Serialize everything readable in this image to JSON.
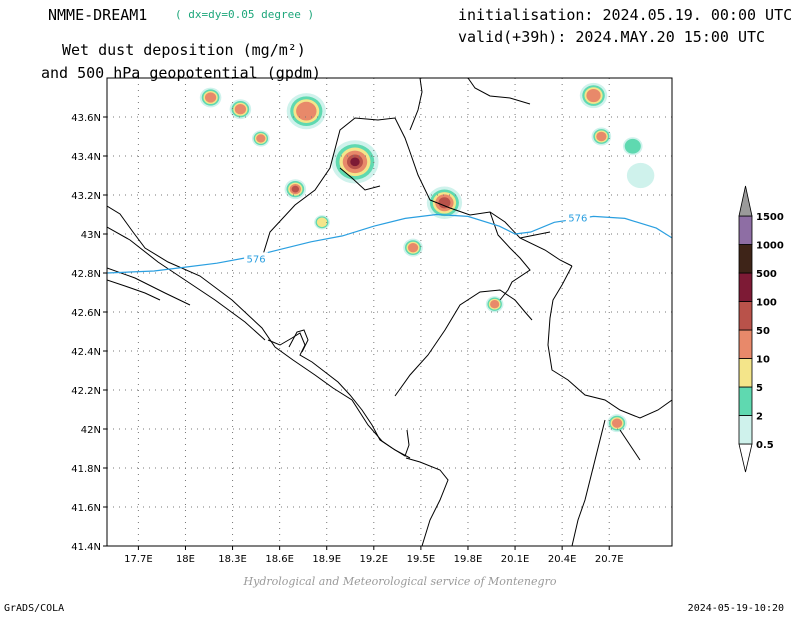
{
  "header": {
    "model": "NMME-DREAM1",
    "resolution": "( dx=dy=0.05 degree )",
    "init": "initialisation: 2024.05.19. 00:00 UTC",
    "valid": "valid(+39h): 2024.MAY.20 15:00 UTC",
    "title_line1": "Wet dust deposition (mg/m²)",
    "title_line2": "and 500 hPa geopotential (gpdm)"
  },
  "footer": {
    "credit": "Hydrological and Meteorological service of Montenegro",
    "software": "GrADS/COLA",
    "created": "2024-05-19-10:20"
  },
  "map": {
    "lon_range": [
      17.5,
      21.1
    ],
    "lat_range": [
      41.4,
      43.8
    ],
    "lon_ticks": [
      {
        "value": 17.7,
        "label": "17.7E"
      },
      {
        "value": 18.0,
        "label": "18E"
      },
      {
        "value": 18.3,
        "label": "18.3E"
      },
      {
        "value": 18.6,
        "label": "18.6E"
      },
      {
        "value": 18.9,
        "label": "18.9E"
      },
      {
        "value": 19.2,
        "label": "19.2E"
      },
      {
        "value": 19.5,
        "label": "19.5E"
      },
      {
        "value": 19.8,
        "label": "19.8E"
      },
      {
        "value": 20.1,
        "label": "20.1E"
      },
      {
        "value": 20.4,
        "label": "20.4E"
      },
      {
        "value": 20.7,
        "label": "20.7E"
      }
    ],
    "lat_ticks": [
      {
        "value": 41.4,
        "label": "41.4N"
      },
      {
        "value": 41.6,
        "label": "41.6N"
      },
      {
        "value": 41.8,
        "label": "41.8N"
      },
      {
        "value": 42.0,
        "label": "42N"
      },
      {
        "value": 42.2,
        "label": "42.2N"
      },
      {
        "value": 42.4,
        "label": "42.4N"
      },
      {
        "value": 42.6,
        "label": "42.6N"
      },
      {
        "value": 42.8,
        "label": "42.8N"
      },
      {
        "value": 43.0,
        "label": "43N"
      },
      {
        "value": 43.2,
        "label": "43.2N"
      },
      {
        "value": 43.4,
        "label": "43.4N"
      },
      {
        "value": 43.6,
        "label": "43.6N"
      }
    ],
    "contour_label": "576",
    "contour_576": [
      [
        17.5,
        42.8
      ],
      [
        17.8,
        42.81
      ],
      [
        18.0,
        42.83
      ],
      [
        18.2,
        42.85
      ],
      [
        18.4,
        42.88
      ],
      [
        18.6,
        42.92
      ],
      [
        18.8,
        42.96
      ],
      [
        19.0,
        42.99
      ],
      [
        19.2,
        43.04
      ],
      [
        19.4,
        43.08
      ],
      [
        19.6,
        43.1
      ],
      [
        19.8,
        43.09
      ],
      [
        20.0,
        43.04
      ],
      [
        20.1,
        43.0
      ],
      [
        20.2,
        43.01
      ],
      [
        20.35,
        43.06
      ],
      [
        20.6,
        43.09
      ],
      [
        20.8,
        43.08
      ],
      [
        21.0,
        43.03
      ],
      [
        21.1,
        42.98
      ]
    ],
    "contour_label_positions": [
      [
        18.45,
        42.87
      ],
      [
        20.5,
        43.08
      ]
    ],
    "dust_blobs": [
      {
        "lon": 18.16,
        "lat": 43.7,
        "r": 0.055,
        "max_level": 3
      },
      {
        "lon": 18.35,
        "lat": 43.64,
        "r": 0.055,
        "max_level": 3
      },
      {
        "lon": 18.48,
        "lat": 43.49,
        "r": 0.045,
        "max_level": 3
      },
      {
        "lon": 18.77,
        "lat": 43.63,
        "r": 0.1,
        "max_level": 3
      },
      {
        "lon": 18.7,
        "lat": 43.23,
        "r": 0.055,
        "max_level": 4
      },
      {
        "lon": 18.87,
        "lat": 43.06,
        "r": 0.04,
        "max_level": 2
      },
      {
        "lon": 19.08,
        "lat": 43.37,
        "r": 0.12,
        "max_level": 5
      },
      {
        "lon": 19.65,
        "lat": 43.16,
        "r": 0.09,
        "max_level": 4
      },
      {
        "lon": 19.45,
        "lat": 42.93,
        "r": 0.05,
        "max_level": 3
      },
      {
        "lon": 19.97,
        "lat": 42.64,
        "r": 0.045,
        "max_level": 3
      },
      {
        "lon": 20.6,
        "lat": 43.71,
        "r": 0.07,
        "max_level": 3
      },
      {
        "lon": 20.65,
        "lat": 43.5,
        "r": 0.05,
        "max_level": 3
      },
      {
        "lon": 20.75,
        "lat": 42.03,
        "r": 0.05,
        "max_level": 3
      },
      {
        "lon": 20.85,
        "lat": 43.45,
        "r": 0.05,
        "max_level": 1
      },
      {
        "lon": 20.9,
        "lat": 43.3,
        "r": 0.07,
        "max_level": 0
      }
    ]
  },
  "legend": {
    "levels": [
      {
        "label": "0.5",
        "color": "#cff2ec"
      },
      {
        "label": "2",
        "color": "#5fd9b0"
      },
      {
        "label": "5",
        "color": "#f4e58a"
      },
      {
        "label": "10",
        "color": "#e8896a"
      },
      {
        "label": "50",
        "color": "#b9524a"
      },
      {
        "label": "100",
        "color": "#7d1a35"
      },
      {
        "label": "500",
        "color": "#3e2418"
      },
      {
        "label": "1000",
        "color": "#8e6ea4"
      },
      {
        "label": "1500",
        "color": "#9a9a9a"
      }
    ]
  },
  "colors": {
    "contour": "#2a9fe0",
    "grid": "#777777",
    "border": "#000000"
  }
}
